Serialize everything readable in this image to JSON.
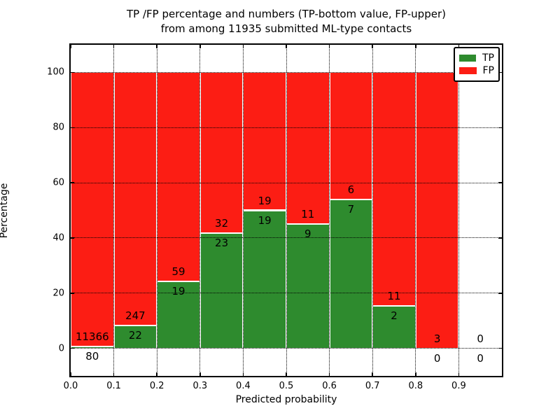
{
  "title": {
    "line1": "TP /FP percentage and numbers (TP-bottom value, FP-upper)",
    "line2": "from among 11935 submitted ML-type contacts"
  },
  "axes": {
    "ylabel": "Percentage",
    "xlabel": "Predicted probability"
  },
  "legend": {
    "items": [
      {
        "label": "TP",
        "color": "#2e8b2e"
      },
      {
        "label": "FP",
        "color": "#fc1d14"
      }
    ]
  },
  "colors": {
    "tp_green": "#2e8b2e",
    "fp_red": "#fc1d14",
    "frame": "#000000",
    "background": "#ffffff",
    "bar_edge": "#ffffff"
  },
  "chart_data": {
    "type": "bar",
    "stacked": true,
    "normalized_to_percent": true,
    "title": "TP /FP percentage and numbers (TP-bottom value, FP-upper) from among 11935 submitted ML-type contacts",
    "xlabel": "Predicted probability",
    "ylabel": "Percentage",
    "total_contacts": 11935,
    "bin_edges": [
      0.0,
      0.1,
      0.2,
      0.3,
      0.4,
      0.5,
      0.6,
      0.7,
      0.8,
      0.9,
      1.0
    ],
    "series": [
      {
        "name": "TP",
        "color": "#2e8b2e",
        "values": [
          80,
          22,
          19,
          23,
          19,
          9,
          7,
          2,
          0,
          0
        ]
      },
      {
        "name": "FP",
        "color": "#fc1d14",
        "values": [
          11366,
          247,
          59,
          32,
          19,
          11,
          6,
          11,
          3,
          0
        ]
      }
    ],
    "tp_percent_per_bin": [
      0.7,
      8.18,
      24.36,
      41.82,
      50.0,
      45.0,
      53.85,
      15.38,
      0.0,
      null
    ],
    "xlim": [
      0.0,
      1.0
    ],
    "ylim": [
      -10,
      110
    ],
    "x_ticks": [
      {
        "label": "0.0",
        "value": 0.0
      },
      {
        "label": "0.1",
        "value": 0.1
      },
      {
        "label": "0.2",
        "value": 0.2
      },
      {
        "label": "0.3",
        "value": 0.3
      },
      {
        "label": "0.4",
        "value": 0.4
      },
      {
        "label": "0.5",
        "value": 0.5
      },
      {
        "label": "0.6",
        "value": 0.6
      },
      {
        "label": "0.7",
        "value": 0.7
      },
      {
        "label": "0.8",
        "value": 0.8
      },
      {
        "label": "0.9",
        "value": 0.9
      }
    ],
    "y_ticks": [
      {
        "label": "0",
        "value": 0
      },
      {
        "label": "20",
        "value": 20
      },
      {
        "label": "40",
        "value": 40
      },
      {
        "label": "60",
        "value": 60
      },
      {
        "label": "80",
        "value": 80
      },
      {
        "label": "100",
        "value": 100
      }
    ],
    "grid": "dotted",
    "legend_position": "upper right"
  }
}
